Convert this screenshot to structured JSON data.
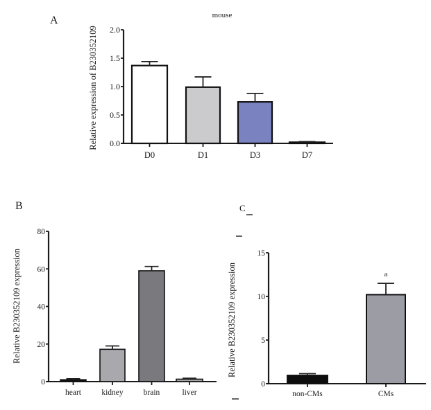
{
  "chart_data": [
    {
      "panel": "A",
      "type": "bar",
      "title": "mouse",
      "xlabel": "",
      "ylabel": "Relative expression of B230352109",
      "categories": [
        "D0",
        "D1",
        "D3",
        "D7"
      ],
      "values": [
        1.37,
        0.99,
        0.73,
        0.02
      ],
      "errors": [
        0.07,
        0.18,
        0.15,
        0.01
      ],
      "colors": [
        "#ffffff",
        "#cbcbcd",
        "#7a82c0",
        "#1a1a1a"
      ],
      "ylim": [
        0,
        2.0
      ],
      "yticks": [
        "0.0",
        "0.5",
        "1.0",
        "1.5",
        "2.0"
      ],
      "ytick_values": [
        0,
        0.5,
        1.0,
        1.5,
        2.0
      ],
      "grid": false,
      "annotations": []
    },
    {
      "panel": "B",
      "type": "bar",
      "title": "",
      "xlabel": "",
      "ylabel": "Relative B230352109 expression",
      "categories": [
        "heart",
        "kidney",
        "brain",
        "liver"
      ],
      "values": [
        1.0,
        17.2,
        59.0,
        1.3
      ],
      "errors": [
        0.5,
        1.8,
        2.3,
        0.5
      ],
      "colors": [
        "#111111",
        "#a9a9ad",
        "#7a7a7e",
        "#a9a9ad"
      ],
      "ylim": [
        0,
        80
      ],
      "yticks": [
        "0",
        "20",
        "40",
        "60",
        "80"
      ],
      "ytick_values": [
        0,
        20,
        40,
        60,
        80
      ],
      "grid": false,
      "annotations": []
    },
    {
      "panel": "C",
      "type": "bar",
      "title": "",
      "xlabel": "",
      "ylabel": "Relative B230352109 expression",
      "categories": [
        "non-CMs",
        "CMs"
      ],
      "values": [
        0.95,
        10.2
      ],
      "errors": [
        0.2,
        1.3
      ],
      "colors": [
        "#0d0d0d",
        "#9b9ca4"
      ],
      "ylim": [
        0,
        15
      ],
      "yticks": [
        "0",
        "5",
        "10",
        "15"
      ],
      "ytick_values": [
        0,
        5,
        10,
        15
      ],
      "grid": false,
      "annotations": [
        {
          "category": "CMs",
          "text": "a"
        }
      ]
    }
  ],
  "panel_labels": [
    "A",
    "B",
    "C"
  ]
}
